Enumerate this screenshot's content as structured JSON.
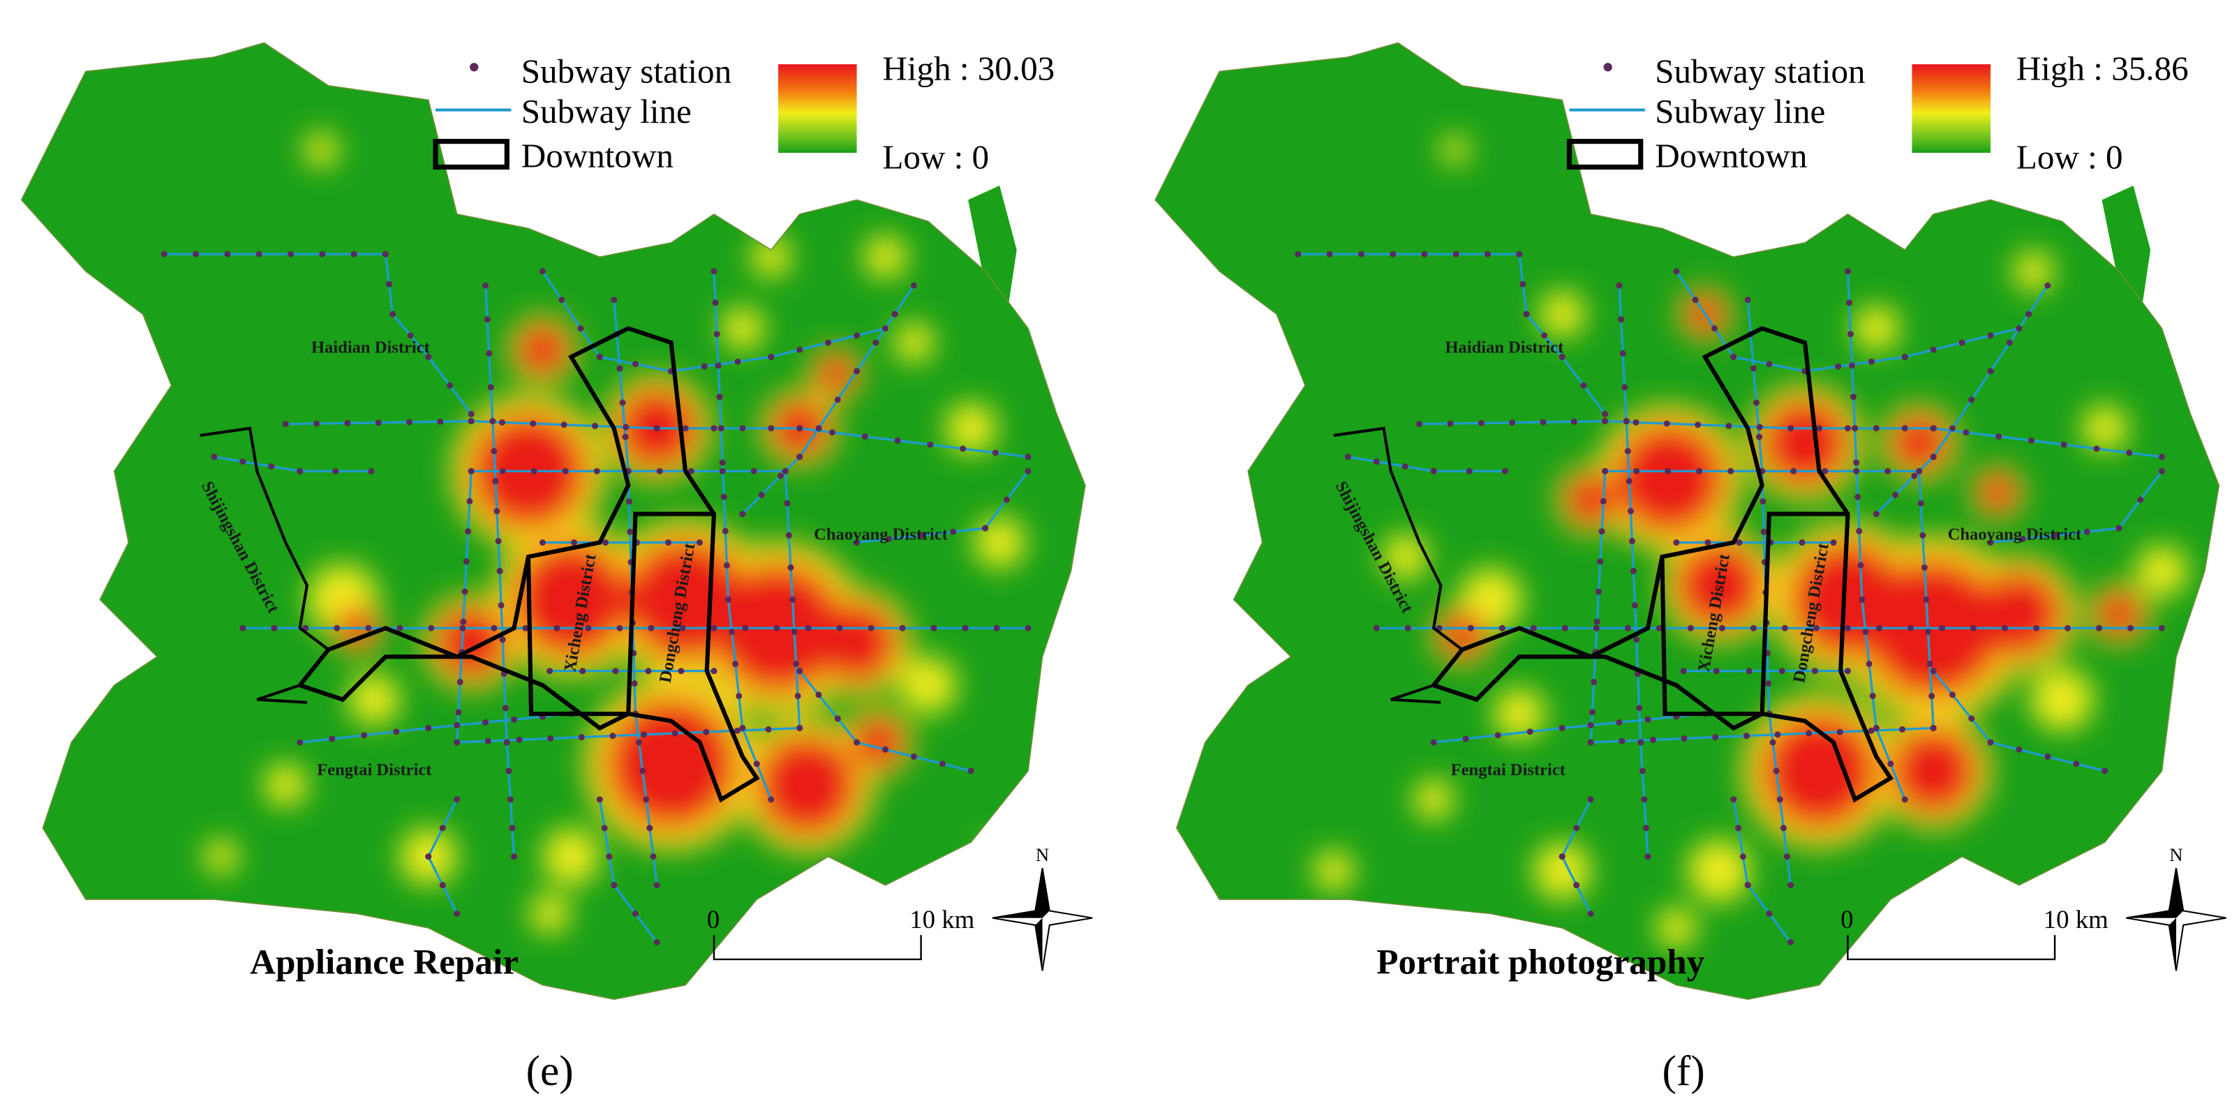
{
  "panels": [
    {
      "label": "(e)",
      "title": "Appliance Repair",
      "legend": {
        "station": "Subway station",
        "line": "Subway line",
        "downtown": "Downtown",
        "high": "High : 30.03",
        "low": "Low : 0"
      },
      "districts": [
        "Haidian District",
        "Shijingshan District",
        "Xicheng District",
        "Dongcheng District",
        "Chaoyang District",
        "Fengtai District"
      ],
      "scale": {
        "start": "0",
        "end": "10 km"
      },
      "north": "N"
    },
    {
      "label": "(f)",
      "title": "Portrait photography",
      "legend": {
        "station": "Subway station",
        "line": "Subway line",
        "downtown": "Downtown",
        "high": "High : 35.86",
        "low": "Low : 0"
      },
      "districts": [
        "Haidian District",
        "Shijingshan District",
        "Xicheng District",
        "Dongcheng District",
        "Chaoyang District",
        "Fengtai District"
      ],
      "scale": {
        "start": "0",
        "end": "10 km"
      },
      "north": "N"
    }
  ]
}
